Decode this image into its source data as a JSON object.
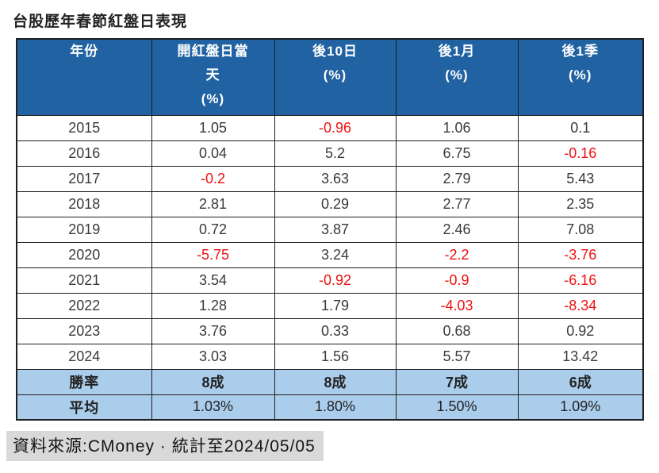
{
  "title": "台股歷年春節紅盤日表現",
  "colors": {
    "header_bg": "#2163A2",
    "header_text": "#FFFFFF",
    "summary_row_bg": "#ABCDEC",
    "negative_value": "#EE1111",
    "body_text": "#3A3A3A",
    "border": "#1F1F1F",
    "source_highlight_bg": "#D9D9D9"
  },
  "table": {
    "headers": [
      "年份",
      "開紅盤日當\n天\n(%)",
      "後10日\n(%)",
      "後1月\n(%)",
      "後1季\n(%)"
    ],
    "rows": [
      {
        "label": "2015",
        "values": [
          "1.05",
          "-0.96",
          "1.06",
          "0.1"
        ]
      },
      {
        "label": "2016",
        "values": [
          "0.04",
          "5.2",
          "6.75",
          "-0.16"
        ]
      },
      {
        "label": "2017",
        "values": [
          "-0.2",
          "3.63",
          "2.79",
          "5.43"
        ]
      },
      {
        "label": "2018",
        "values": [
          "2.81",
          "0.29",
          "2.77",
          "2.35"
        ]
      },
      {
        "label": "2019",
        "values": [
          "0.72",
          "3.87",
          "2.46",
          "7.08"
        ]
      },
      {
        "label": "2020",
        "values": [
          "-5.75",
          "3.24",
          "-2.2",
          "-3.76"
        ]
      },
      {
        "label": "2021",
        "values": [
          "3.54",
          "-0.92",
          "-0.9",
          "-6.16"
        ]
      },
      {
        "label": "2022",
        "values": [
          "1.28",
          "1.79",
          "-4.03",
          "-8.34"
        ]
      },
      {
        "label": "2023",
        "values": [
          "3.76",
          "0.33",
          "0.68",
          "0.92"
        ]
      },
      {
        "label": "2024",
        "values": [
          "3.03",
          "1.56",
          "5.57",
          "13.42"
        ]
      }
    ],
    "summary_rows": [
      {
        "label": "勝率",
        "values": [
          "8成",
          "8成",
          "7成",
          "6成"
        ],
        "bold": true
      },
      {
        "label": "平均",
        "values": [
          "1.03%",
          "1.80%",
          "1.50%",
          "1.09%"
        ],
        "bold": false
      }
    ]
  },
  "source": "資料來源:CMoney · 統計至2024/05/05",
  "chart_data": {
    "type": "table",
    "title": "台股歷年春節紅盤日表現",
    "columns": [
      "年份",
      "開紅盤日當天(%)",
      "後10日(%)",
      "後1月(%)",
      "後1季(%)"
    ],
    "rows": [
      [
        2015,
        1.05,
        -0.96,
        1.06,
        0.1
      ],
      [
        2016,
        0.04,
        5.2,
        6.75,
        -0.16
      ],
      [
        2017,
        -0.2,
        3.63,
        2.79,
        5.43
      ],
      [
        2018,
        2.81,
        0.29,
        2.77,
        2.35
      ],
      [
        2019,
        0.72,
        3.87,
        2.46,
        7.08
      ],
      [
        2020,
        -5.75,
        3.24,
        -2.2,
        -3.76
      ],
      [
        2021,
        3.54,
        -0.92,
        -0.9,
        -6.16
      ],
      [
        2022,
        1.28,
        1.79,
        -4.03,
        -8.34
      ],
      [
        2023,
        3.76,
        0.33,
        0.68,
        0.92
      ],
      [
        2024,
        3.03,
        1.56,
        5.57,
        13.42
      ]
    ],
    "win_rate_row": {
      "label": "勝率",
      "values": [
        "8成",
        "8成",
        "7成",
        "6成"
      ]
    },
    "average_row": {
      "label": "平均",
      "values": [
        "1.03%",
        "1.80%",
        "1.50%",
        "1.09%"
      ]
    },
    "negative_values_colored": "red",
    "source_note": "資料來源:CMoney · 統計至2024/05/05"
  }
}
